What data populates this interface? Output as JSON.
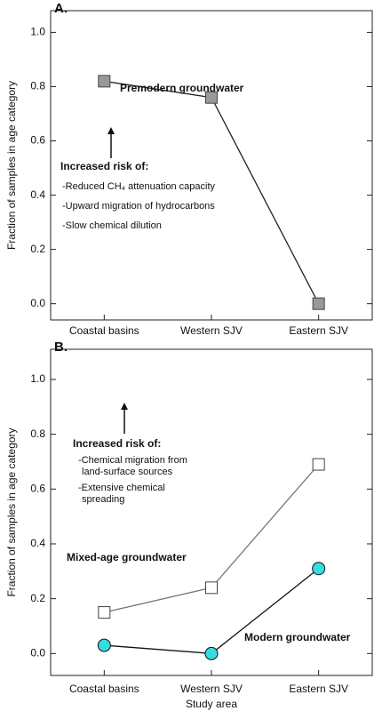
{
  "chart_data": [
    {
      "type": "line",
      "panel_label": "A.",
      "y_label": "Fraction of samples in age category",
      "categories": [
        "Coastal basins",
        "Western SJV",
        "Eastern SJV"
      ],
      "ylim": [
        -0.06,
        1.08
      ],
      "yticks": [
        {
          "value": 0,
          "label": "0.0"
        },
        0.2,
        0.4,
        0.6,
        0.8,
        {
          "value": 1,
          "label": "1.0"
        }
      ],
      "series": [
        {
          "name": "Premodern groundwater",
          "color": "#999999",
          "line_color": "#222222",
          "marker": "square",
          "values": [
            0.82,
            0.76,
            0.0
          ]
        }
      ],
      "annotation": {
        "heading": "Increased risk of:",
        "items": [
          [
            "-Reduced CH₄ attenuation capacity"
          ],
          [
            "-Upward migration of hydrocarbons"
          ],
          [
            "-Slow chemical dilution"
          ]
        ]
      }
    },
    {
      "type": "line",
      "panel_label": "B.",
      "y_label": "Fraction of samples in age category",
      "x_label": "Study area",
      "categories": [
        "Coastal basins",
        "Western SJV",
        "Eastern SJV"
      ],
      "ylim": [
        -0.08,
        1.11
      ],
      "yticks": [
        {
          "value": 0,
          "label": "0.0"
        },
        0.2,
        0.4,
        0.6,
        0.8,
        {
          "value": 1,
          "label": "1.0"
        }
      ],
      "series": [
        {
          "name": "Mixed-age groundwater",
          "color": "#ffffff",
          "line_color": "#777777",
          "marker": "square",
          "values": [
            0.15,
            0.24,
            0.69
          ]
        },
        {
          "name": "Modern groundwater",
          "color": "#33dde0",
          "line_color": "#111111",
          "marker": "circle",
          "values": [
            0.03,
            0.0,
            0.31
          ]
        }
      ],
      "annotation": {
        "heading": "Increased risk of:",
        "items": [
          [
            "-Chemical migration from",
            "land-surface sources"
          ],
          [
            "-Extensive chemical",
            "spreading"
          ]
        ]
      }
    }
  ]
}
